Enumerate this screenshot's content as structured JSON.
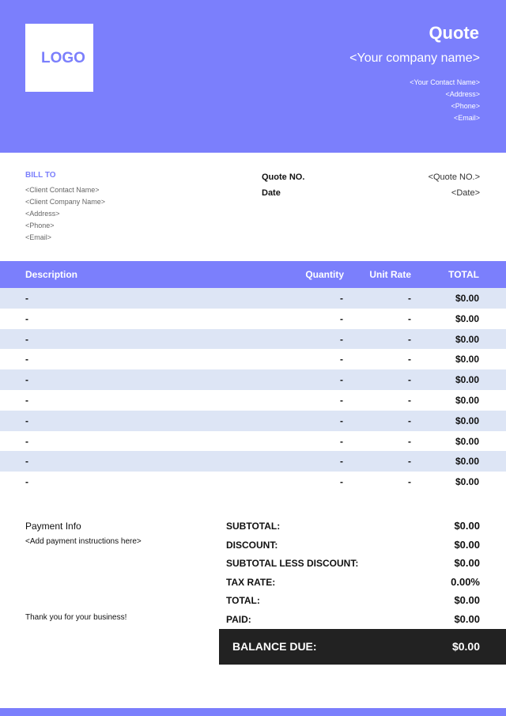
{
  "header": {
    "logo": "LOGO",
    "title": "Quote",
    "company_name": "<Your company name>",
    "contact": [
      "<Your Contact Name>",
      "<Address>",
      "<Phone>",
      "<Email>"
    ]
  },
  "bill_to": {
    "label": "BILL TO",
    "lines": [
      "<Client Contact Name>",
      "<Client Company Name>",
      "<Address>",
      "<Phone>",
      "<Email>"
    ]
  },
  "quote_info": [
    {
      "label": "Quote NO.",
      "value": "<Quote NO.>"
    },
    {
      "label": "Date",
      "value": "<Date>"
    }
  ],
  "table": {
    "columns": [
      "Description",
      "Quantity",
      "Unit Rate",
      "TOTAL"
    ],
    "rows": [
      [
        "-",
        "-",
        "-",
        "$0.00"
      ],
      [
        "-",
        "-",
        "-",
        "$0.00"
      ],
      [
        "-",
        "-",
        "-",
        "$0.00"
      ],
      [
        "-",
        "-",
        "-",
        "$0.00"
      ],
      [
        "-",
        "-",
        "-",
        "$0.00"
      ],
      [
        "-",
        "-",
        "-",
        "$0.00"
      ],
      [
        "-",
        "-",
        "-",
        "$0.00"
      ],
      [
        "-",
        "-",
        "-",
        "$0.00"
      ],
      [
        "-",
        "-",
        "-",
        "$0.00"
      ],
      [
        "-",
        "-",
        "-",
        "$0.00"
      ]
    ]
  },
  "payment": {
    "title": "Payment Info",
    "instructions": "<Add payment instructions here>",
    "thanks": "Thank you for your business!"
  },
  "summary": [
    {
      "label": "SUBTOTAL:",
      "value": "$0.00"
    },
    {
      "label": "DISCOUNT:",
      "value": "$0.00"
    },
    {
      "label": "SUBTOTAL LESS DISCOUNT:",
      "value": "$0.00"
    },
    {
      "label": "TAX RATE:",
      "value": "0.00%"
    },
    {
      "label": "TOTAL:",
      "value": "$0.00"
    },
    {
      "label": "PAID:",
      "value": "$0.00"
    }
  ],
  "balance_due": {
    "label": "BALANCE DUE:",
    "value": "$0.00"
  }
}
